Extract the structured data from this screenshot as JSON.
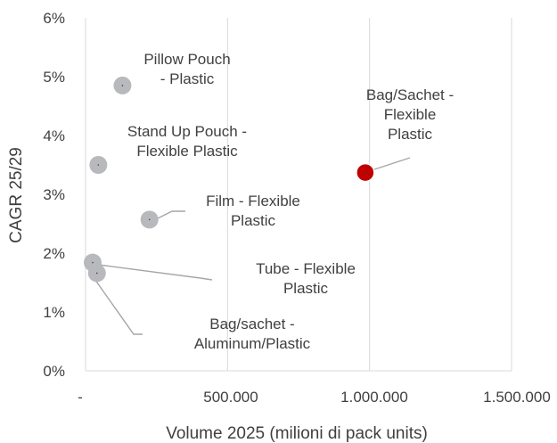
{
  "chart_data": {
    "type": "scatter",
    "xlabel": "Volume 2025 (milioni di pack units)",
    "ylabel": "CAGR 25/29",
    "xlim": [
      0,
      1500000
    ],
    "ylim": [
      0,
      6
    ],
    "x_ticks": [
      {
        "value": 0,
        "label": "-"
      },
      {
        "value": 500000,
        "label": "500.000"
      },
      {
        "value": 1000000,
        "label": "1.000.000"
      },
      {
        "value": 1500000,
        "label": "1.500.000"
      }
    ],
    "y_ticks": [
      {
        "value": 0,
        "label": "0%"
      },
      {
        "value": 1,
        "label": "1%"
      },
      {
        "value": 2,
        "label": "2%"
      },
      {
        "value": 3,
        "label": "3%"
      },
      {
        "value": 4,
        "label": "4%"
      },
      {
        "value": 5,
        "label": "5%"
      },
      {
        "value": 6,
        "label": "6%"
      }
    ],
    "grid": {
      "x": true,
      "y": false
    },
    "colors": {
      "default_point": "#b8b9bd",
      "highlight_point": "#c00000",
      "leader": "#a6a6a6",
      "axis": "#d9d9d9",
      "text": "#404040"
    },
    "points": [
      {
        "name": "Pillow Pouch - Plastic",
        "label_lines": [
          "Pillow Pouch",
          "- Plastic"
        ],
        "x": 130000,
        "y": 4.85,
        "highlight": false
      },
      {
        "name": "Stand Up Pouch - Flexible Plastic",
        "label_lines": [
          "Stand Up Pouch -",
          "Flexible Plastic"
        ],
        "x": 45000,
        "y": 3.5,
        "highlight": false
      },
      {
        "name": "Bag/Sachet - Flexible Plastic",
        "label_lines": [
          "Bag/Sachet -",
          "Flexible",
          "Plastic"
        ],
        "x": 985000,
        "y": 3.37,
        "highlight": true
      },
      {
        "name": "Film - Flexible Plastic",
        "label_lines": [
          "Film - Flexible",
          "Plastic"
        ],
        "x": 225000,
        "y": 2.57,
        "highlight": false
      },
      {
        "name": "Tube - Flexible Plastic",
        "label_lines": [
          "Tube - Flexible",
          "Plastic"
        ],
        "x": 25000,
        "y": 1.84,
        "highlight": false
      },
      {
        "name": "Bag/sachet - Aluminum/Plastic",
        "label_lines": [
          "Bag/sachet -",
          "Aluminum/Plastic"
        ],
        "x": 40000,
        "y": 1.66,
        "highlight": false
      }
    ]
  }
}
